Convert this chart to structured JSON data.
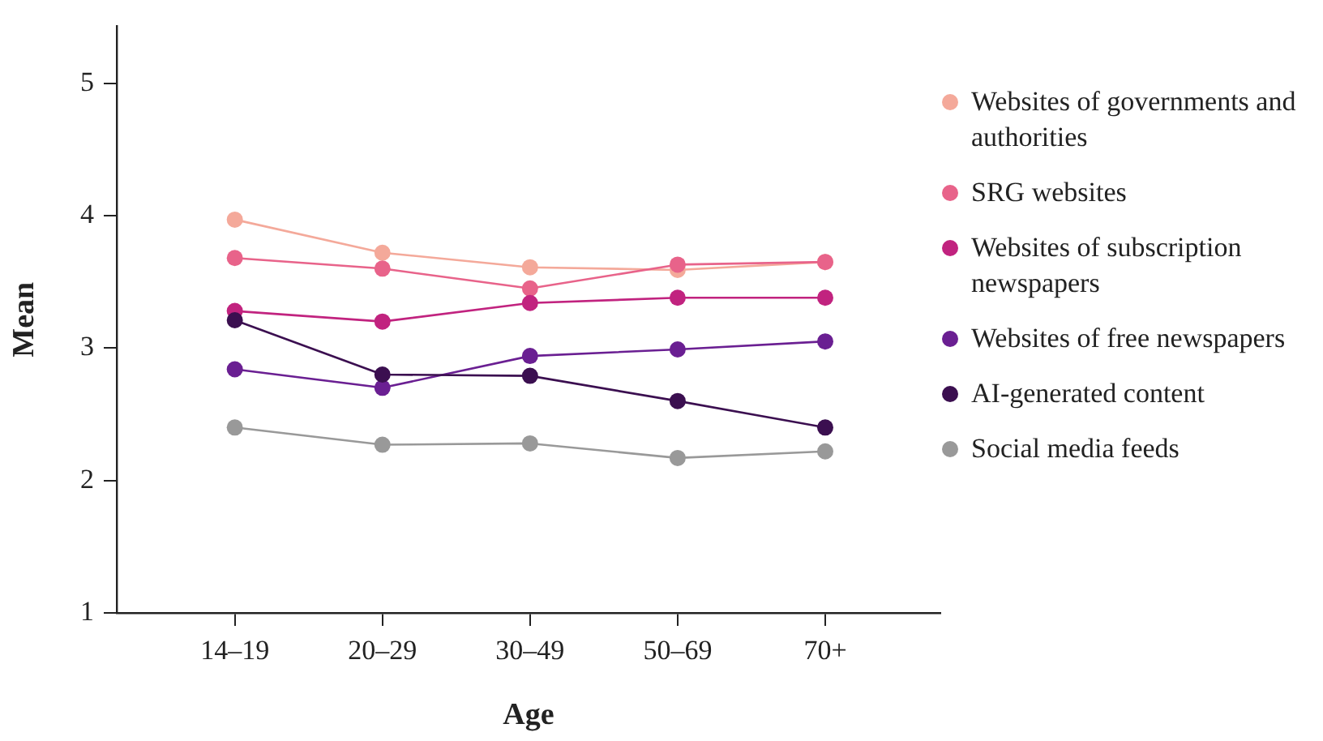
{
  "chart_data": {
    "type": "line",
    "xlabel": "Age",
    "ylabel": "Mean",
    "categories": [
      "14–19",
      "20–29",
      "30–49",
      "50–69",
      "70+"
    ],
    "ylim": [
      1,
      5.43
    ],
    "yticks": [
      1,
      2,
      3,
      4,
      5
    ],
    "grid": false,
    "legend": "right",
    "marker": "circle",
    "line_style": "solid",
    "series": [
      {
        "name": "Websites of governments and authorities",
        "color": "#f4a99a",
        "values": [
          3.97,
          3.72,
          3.61,
          3.59,
          3.65
        ]
      },
      {
        "name": "SRG websites",
        "color": "#e8638a",
        "values": [
          3.68,
          3.6,
          3.45,
          3.63,
          3.65
        ]
      },
      {
        "name": "Websites of subscription newspapers",
        "color": "#c1237f",
        "values": [
          3.28,
          3.2,
          3.34,
          3.38,
          3.38
        ]
      },
      {
        "name": "Websites of free newspapers",
        "color": "#6a1f92",
        "values": [
          2.84,
          2.7,
          2.94,
          2.99,
          3.05
        ]
      },
      {
        "name": "AI-generated content",
        "color": "#3b0f50",
        "values": [
          3.21,
          2.8,
          2.79,
          2.6,
          2.4
        ]
      },
      {
        "name": "Social media feeds",
        "color": "#999999",
        "values": [
          2.4,
          2.27,
          2.28,
          2.17,
          2.22
        ]
      }
    ]
  }
}
